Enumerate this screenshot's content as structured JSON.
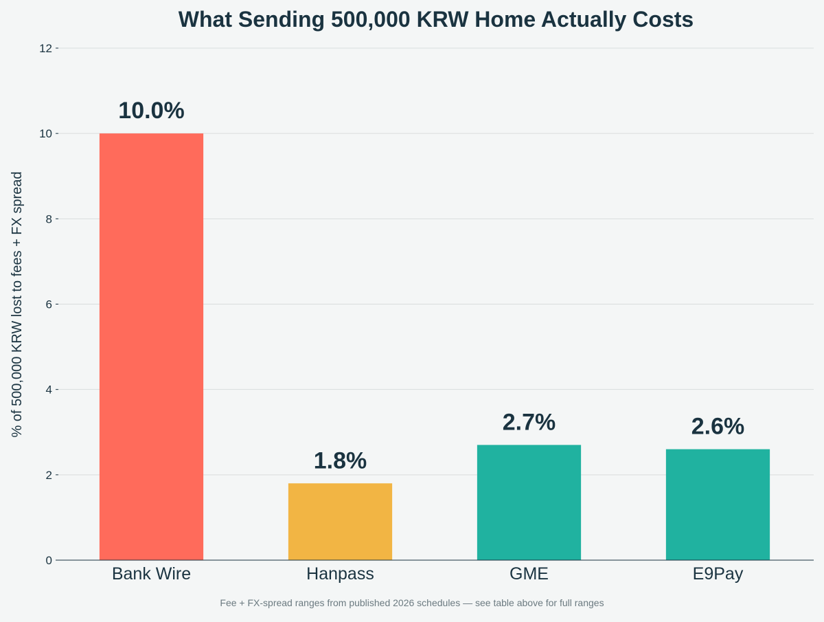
{
  "chart_data": {
    "type": "bar",
    "title": "What Sending 500,000 KRW Home Actually Costs",
    "ylabel": "% of 500,000 KRW lost to fees + FX spread",
    "xlabel": "",
    "categories": [
      "Bank Wire",
      "Hanpass",
      "GME",
      "E9Pay"
    ],
    "values": [
      10.0,
      1.8,
      2.7,
      2.6
    ],
    "data_labels": [
      "10.0%",
      "1.8%",
      "2.7%",
      "2.6%"
    ],
    "bar_colors": [
      "#ff6b5b",
      "#f2b544",
      "#20b2a0",
      "#20b2a0"
    ],
    "ylim": [
      0,
      12
    ],
    "yticks": [
      0,
      2,
      4,
      6,
      8,
      10,
      12
    ],
    "grid": true,
    "footnote": "Fee + FX-spread ranges from published 2026 schedules — see table above for full ranges"
  },
  "colors": {
    "background": "#f4f6f6",
    "text": "#1a3340",
    "grid": "#d9dddd",
    "footnote": "#6b7a80"
  }
}
